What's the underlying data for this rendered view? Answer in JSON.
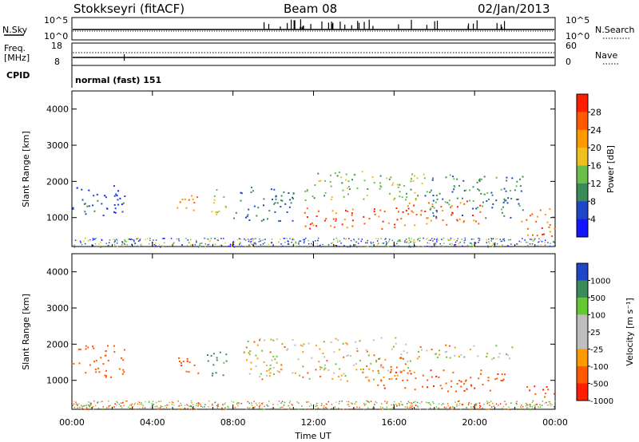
{
  "header": {
    "station": "Stokkseyri (fitACF)",
    "beam": "Beam 08",
    "date": "02/Jan/2013"
  },
  "status_panel": {
    "nsky_label": "N.Sky",
    "nsky_ticks": [
      "10^5",
      "10^0"
    ],
    "nsearch_label": "N.Search",
    "nsearch_ticks": [
      "10^5",
      "10^0"
    ],
    "freq_label": "Freq.",
    "freq_unit": "[MHz]",
    "freq_ticks": [
      "18",
      "8"
    ],
    "nave_label": "Nave",
    "nave_ticks": [
      "60",
      "0"
    ],
    "cpid_label": "CPID",
    "cpid_value": "normal (fast) 151"
  },
  "colors": {
    "power": [
      "#1414ff",
      "#1e46c8",
      "#3a8a5a",
      "#6abf4b",
      "#f0c020",
      "#ff9900",
      "#ff5a00",
      "#ff1e00"
    ],
    "velocity": [
      "#ff1e00",
      "#ff5a00",
      "#ff9900",
      "#bebebe",
      "#bebebe",
      "#64c832",
      "#3a8a5a",
      "#1e46c8"
    ],
    "ground_scatter": "#bebebe"
  },
  "chart_data": [
    {
      "type": "heatmap",
      "panel": "power",
      "ylabel": "Slant Range [km]",
      "xlabel": "",
      "ylim": [
        200,
        4500
      ],
      "y_ticks": [
        "1000",
        "2000",
        "3000",
        "4000"
      ],
      "x_tick_labels": [
        "00:00",
        "04:00",
        "08:00",
        "12:00",
        "16:00",
        "20:00",
        "00:00"
      ],
      "colorbar": {
        "label": "Power [dB]",
        "ticks": [
          "4",
          "8",
          "12",
          "16",
          "20",
          "24",
          "28"
        ],
        "range": [
          0,
          32
        ]
      },
      "regions": [
        {
          "t0": 0.0,
          "t1": 2.6,
          "r0": 1000,
          "r1": 1900,
          "level": 6
        },
        {
          "t0": 5.2,
          "t1": 6.4,
          "r0": 1150,
          "r1": 1700,
          "level": 22
        },
        {
          "t0": 6.8,
          "t1": 7.8,
          "r0": 1100,
          "r1": 1800,
          "level": 16
        },
        {
          "t0": 8.0,
          "t1": 11.0,
          "r0": 900,
          "r1": 1900,
          "level": 8
        },
        {
          "t0": 11.5,
          "t1": 16.5,
          "r0": 700,
          "r1": 1300,
          "level": 27
        },
        {
          "t0": 11.5,
          "t1": 17.5,
          "r0": 1500,
          "r1": 2300,
          "level": 14
        },
        {
          "t0": 16.5,
          "t1": 20.5,
          "r0": 800,
          "r1": 1500,
          "level": 26
        },
        {
          "t0": 17.5,
          "t1": 22.5,
          "r0": 1000,
          "r1": 2200,
          "level": 10
        },
        {
          "t0": 22.3,
          "t1": 24.0,
          "r0": 500,
          "r1": 1300,
          "level": 25
        }
      ]
    },
    {
      "type": "heatmap",
      "panel": "velocity",
      "ylabel": "Slant Range [km]",
      "xlabel": "Time UT",
      "ylim": [
        200,
        4500
      ],
      "y_ticks": [
        "1000",
        "2000",
        "3000",
        "4000"
      ],
      "x_tick_labels": [
        "00:00",
        "04:00",
        "08:00",
        "12:00",
        "16:00",
        "20:00",
        "00:00"
      ],
      "colorbar": {
        "label": "Velocity [m s⁻¹]",
        "ticks": [
          "1000",
          "500",
          "100",
          "25",
          "-25",
          "-100",
          "-500",
          "-1000"
        ]
      },
      "regions": [
        {
          "t0": 0.0,
          "t1": 2.6,
          "r0": 1100,
          "r1": 2000,
          "level": -300
        },
        {
          "t0": 5.2,
          "t1": 6.4,
          "r0": 1200,
          "r1": 1800,
          "level": -400
        },
        {
          "t0": 6.5,
          "t1": 7.8,
          "r0": 1100,
          "r1": 1800,
          "level": 600
        },
        {
          "t0": 8.5,
          "t1": 17.0,
          "r0": 1000,
          "r1": 2200,
          "level": 0
        },
        {
          "t0": 15.0,
          "t1": 21.5,
          "r0": 700,
          "r1": 1300,
          "level": -400
        },
        {
          "t0": 16.0,
          "t1": 22.0,
          "r0": 1600,
          "r1": 2000,
          "level": 0
        },
        {
          "t0": 22.5,
          "t1": 24.0,
          "r0": 500,
          "r1": 900,
          "level": -500
        }
      ]
    }
  ]
}
